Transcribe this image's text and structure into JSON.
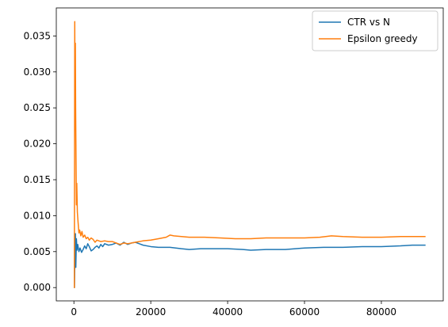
{
  "chart_data": {
    "type": "line",
    "title": "",
    "xlabel": "",
    "ylabel": "",
    "xlim": [
      -4580,
      96100
    ],
    "ylim": [
      -0.00185,
      0.0389
    ],
    "xticks": [
      0,
      20000,
      40000,
      60000,
      80000
    ],
    "xtick_labels": [
      "0",
      "20000",
      "40000",
      "60000",
      "80000"
    ],
    "yticks": [
      0.0,
      0.005,
      0.01,
      0.015,
      0.02,
      0.025,
      0.03,
      0.035
    ],
    "ytick_labels": [
      "0.000",
      "0.005",
      "0.010",
      "0.015",
      "0.020",
      "0.025",
      "0.030",
      "0.035"
    ],
    "grid": false,
    "legend_position": "top-right",
    "series": [
      {
        "name": "CTR vs N",
        "color": "#1f77b4",
        "points": [
          [
            0,
            0.0
          ],
          [
            150,
            0.0
          ],
          [
            250,
            0.0045
          ],
          [
            400,
            0.0075
          ],
          [
            500,
            0.0028
          ],
          [
            650,
            0.0068
          ],
          [
            800,
            0.0052
          ],
          [
            1000,
            0.006
          ],
          [
            1300,
            0.005
          ],
          [
            1600,
            0.0055
          ],
          [
            2000,
            0.0049
          ],
          [
            2400,
            0.0053
          ],
          [
            2800,
            0.0058
          ],
          [
            3200,
            0.0054
          ],
          [
            3600,
            0.0061
          ],
          [
            4000,
            0.0057
          ],
          [
            4500,
            0.0051
          ],
          [
            5000,
            0.0053
          ],
          [
            5500,
            0.0056
          ],
          [
            6000,
            0.0058
          ],
          [
            6500,
            0.0055
          ],
          [
            7000,
            0.006
          ],
          [
            7500,
            0.0057
          ],
          [
            8000,
            0.0061
          ],
          [
            9000,
            0.0059
          ],
          [
            10000,
            0.006
          ],
          [
            11000,
            0.0062
          ],
          [
            12000,
            0.0059
          ],
          [
            13000,
            0.0063
          ],
          [
            14000,
            0.006
          ],
          [
            15000,
            0.0062
          ],
          [
            16000,
            0.0063
          ],
          [
            17000,
            0.0061
          ],
          [
            18000,
            0.0059
          ],
          [
            20000,
            0.0057
          ],
          [
            22000,
            0.0056
          ],
          [
            25000,
            0.0056
          ],
          [
            28000,
            0.0054
          ],
          [
            30000,
            0.0053
          ],
          [
            33000,
            0.0054
          ],
          [
            36000,
            0.0054
          ],
          [
            40000,
            0.0054
          ],
          [
            44000,
            0.0053
          ],
          [
            46000,
            0.0052
          ],
          [
            50000,
            0.0053
          ],
          [
            55000,
            0.0053
          ],
          [
            60000,
            0.0055
          ],
          [
            65000,
            0.0056
          ],
          [
            70000,
            0.0056
          ],
          [
            75000,
            0.0057
          ],
          [
            80000,
            0.0057
          ],
          [
            85000,
            0.0058
          ],
          [
            88000,
            0.0059
          ],
          [
            91500,
            0.0059
          ]
        ]
      },
      {
        "name": "Epsilon greedy",
        "color": "#ff7f0e",
        "points": [
          [
            0,
            0.0
          ],
          [
            120,
            0.0
          ],
          [
            220,
            0.037
          ],
          [
            300,
            0.022
          ],
          [
            380,
            0.034
          ],
          [
            450,
            0.025
          ],
          [
            550,
            0.018
          ],
          [
            650,
            0.0115
          ],
          [
            750,
            0.0145
          ],
          [
            900,
            0.0105
          ],
          [
            1100,
            0.009
          ],
          [
            1300,
            0.0076
          ],
          [
            1500,
            0.008
          ],
          [
            1800,
            0.0072
          ],
          [
            2100,
            0.0078
          ],
          [
            2400,
            0.007
          ],
          [
            2800,
            0.0073
          ],
          [
            3200,
            0.0068
          ],
          [
            3600,
            0.007
          ],
          [
            4000,
            0.0066
          ],
          [
            4500,
            0.0069
          ],
          [
            5000,
            0.0067
          ],
          [
            5500,
            0.0063
          ],
          [
            6000,
            0.0066
          ],
          [
            7000,
            0.0064
          ],
          [
            8000,
            0.0065
          ],
          [
            9000,
            0.0064
          ],
          [
            10000,
            0.0064
          ],
          [
            11000,
            0.0062
          ],
          [
            12000,
            0.006
          ],
          [
            13000,
            0.0062
          ],
          [
            14000,
            0.0061
          ],
          [
            16000,
            0.0063
          ],
          [
            18000,
            0.0065
          ],
          [
            20000,
            0.0066
          ],
          [
            22000,
            0.0068
          ],
          [
            24000,
            0.007
          ],
          [
            25000,
            0.0073
          ],
          [
            26000,
            0.0072
          ],
          [
            28000,
            0.0071
          ],
          [
            30000,
            0.007
          ],
          [
            34000,
            0.007
          ],
          [
            38000,
            0.0069
          ],
          [
            42000,
            0.0068
          ],
          [
            46000,
            0.0068
          ],
          [
            50000,
            0.0069
          ],
          [
            55000,
            0.0069
          ],
          [
            60000,
            0.0069
          ],
          [
            64000,
            0.007
          ],
          [
            67000,
            0.0072
          ],
          [
            70000,
            0.0071
          ],
          [
            75000,
            0.007
          ],
          [
            80000,
            0.007
          ],
          [
            85000,
            0.0071
          ],
          [
            91500,
            0.0071
          ]
        ]
      }
    ]
  }
}
